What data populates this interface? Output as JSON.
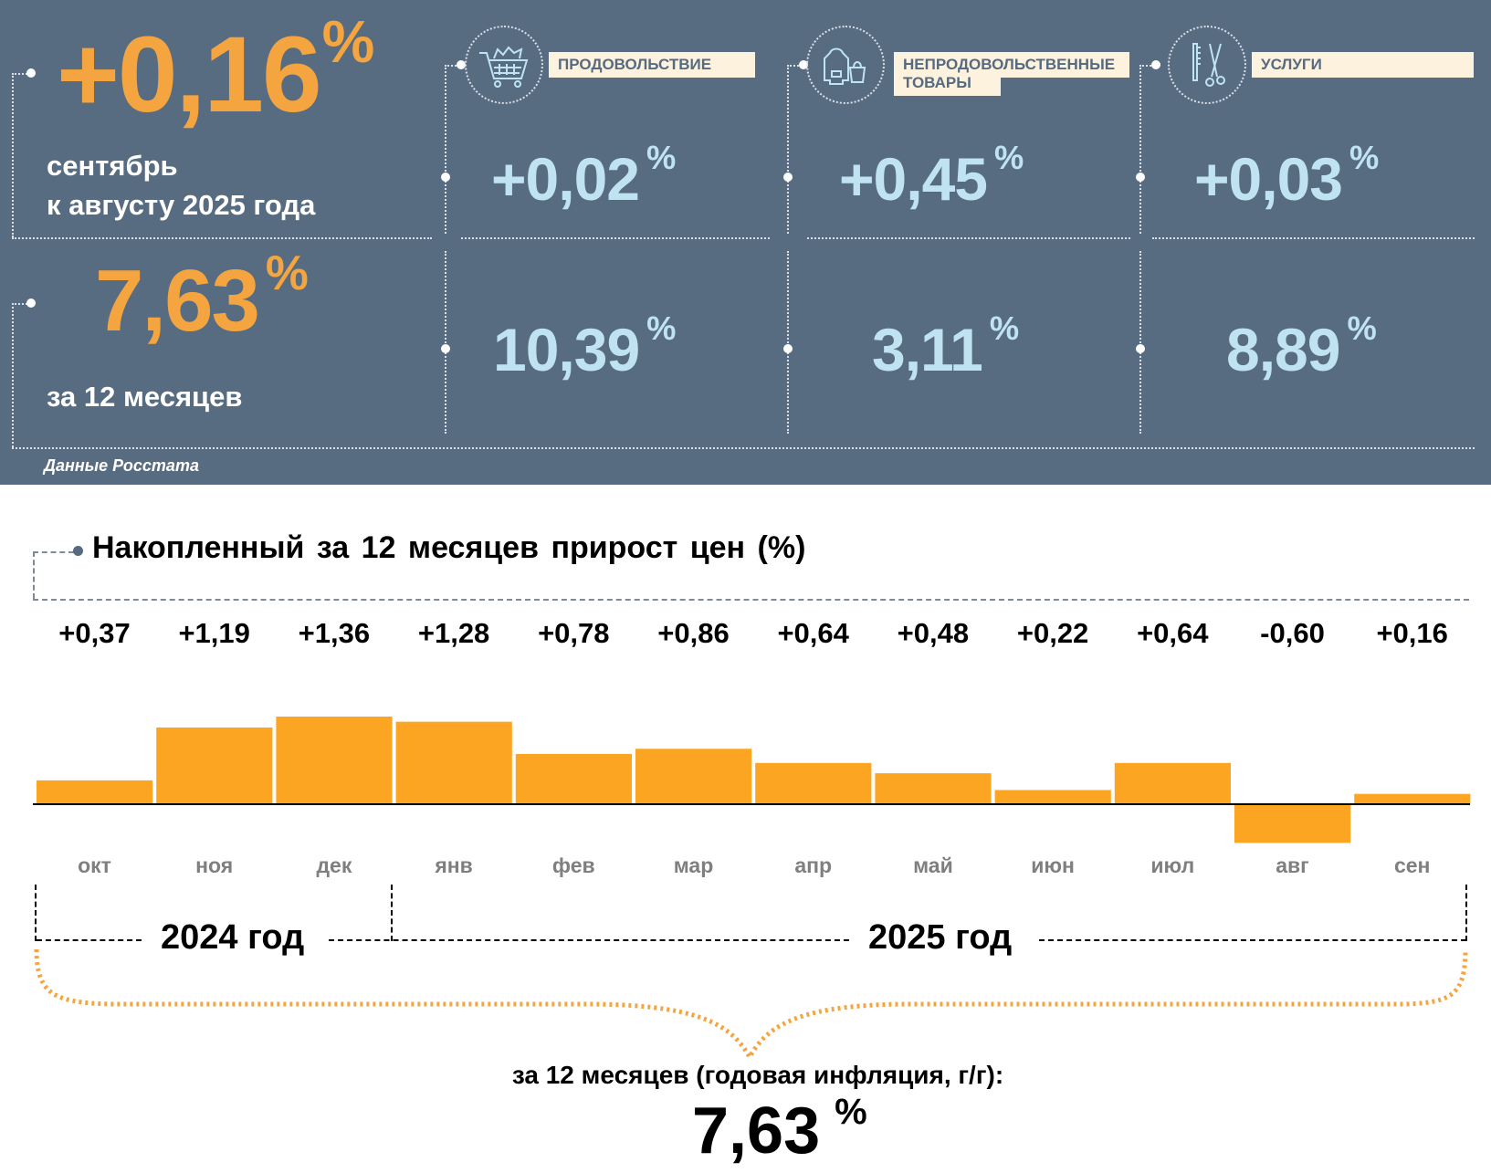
{
  "header": {
    "monthly_value": "+0,16",
    "percent": "%",
    "monthly_caption_1": "сентябрь",
    "monthly_caption_2": "к августу 2025 года",
    "annual_value": "7,63",
    "annual_caption": "за 12 месяцев",
    "source": "Данные Росстата"
  },
  "categories": [
    {
      "label": "ПРОДОВОЛЬСТВИЕ",
      "icon": "shopping-cart-icon",
      "monthly": "+0,02",
      "annual": "10,39"
    },
    {
      "label_1": "НЕПРОДОВОЛЬСТВЕННЫЕ",
      "label_2": "ТОВАРЫ",
      "icon": "clothing-bag-icon",
      "monthly": "+0,45",
      "annual": "3,11"
    },
    {
      "label": "УСЛУГИ",
      "icon": "comb-scissors-icon",
      "monthly": "+0,03",
      "annual": "8,89"
    }
  ],
  "colors": {
    "panel": "#586c81",
    "accent_orange": "#f5a53f",
    "value_blue": "#c0e3f2",
    "bar": "#fca522"
  },
  "chart_data": {
    "type": "bar",
    "title": "Накопленный за 12 месяцев прирост цен (%)",
    "categories": [
      "окт",
      "ноя",
      "дек",
      "янв",
      "фев",
      "мар",
      "апр",
      "май",
      "июн",
      "июл",
      "авг",
      "сен"
    ],
    "values": [
      0.37,
      1.19,
      1.36,
      1.28,
      0.78,
      0.86,
      0.64,
      0.48,
      0.22,
      0.64,
      -0.6,
      0.16
    ],
    "value_labels": [
      "+0,37",
      "+1,19",
      "+1,36",
      "+1,28",
      "+0,78",
      "+0,86",
      "+0,64",
      "+0,48",
      "+0,22",
      "+0,64",
      "-0,60",
      "+0,16"
    ],
    "year_groups": [
      "2024 год",
      "2025 год"
    ],
    "summary_caption": "за 12 месяцев (годовая инфляция, г/г):",
    "summary_value": "7,63",
    "summary_unit": "%",
    "grid": false
  }
}
